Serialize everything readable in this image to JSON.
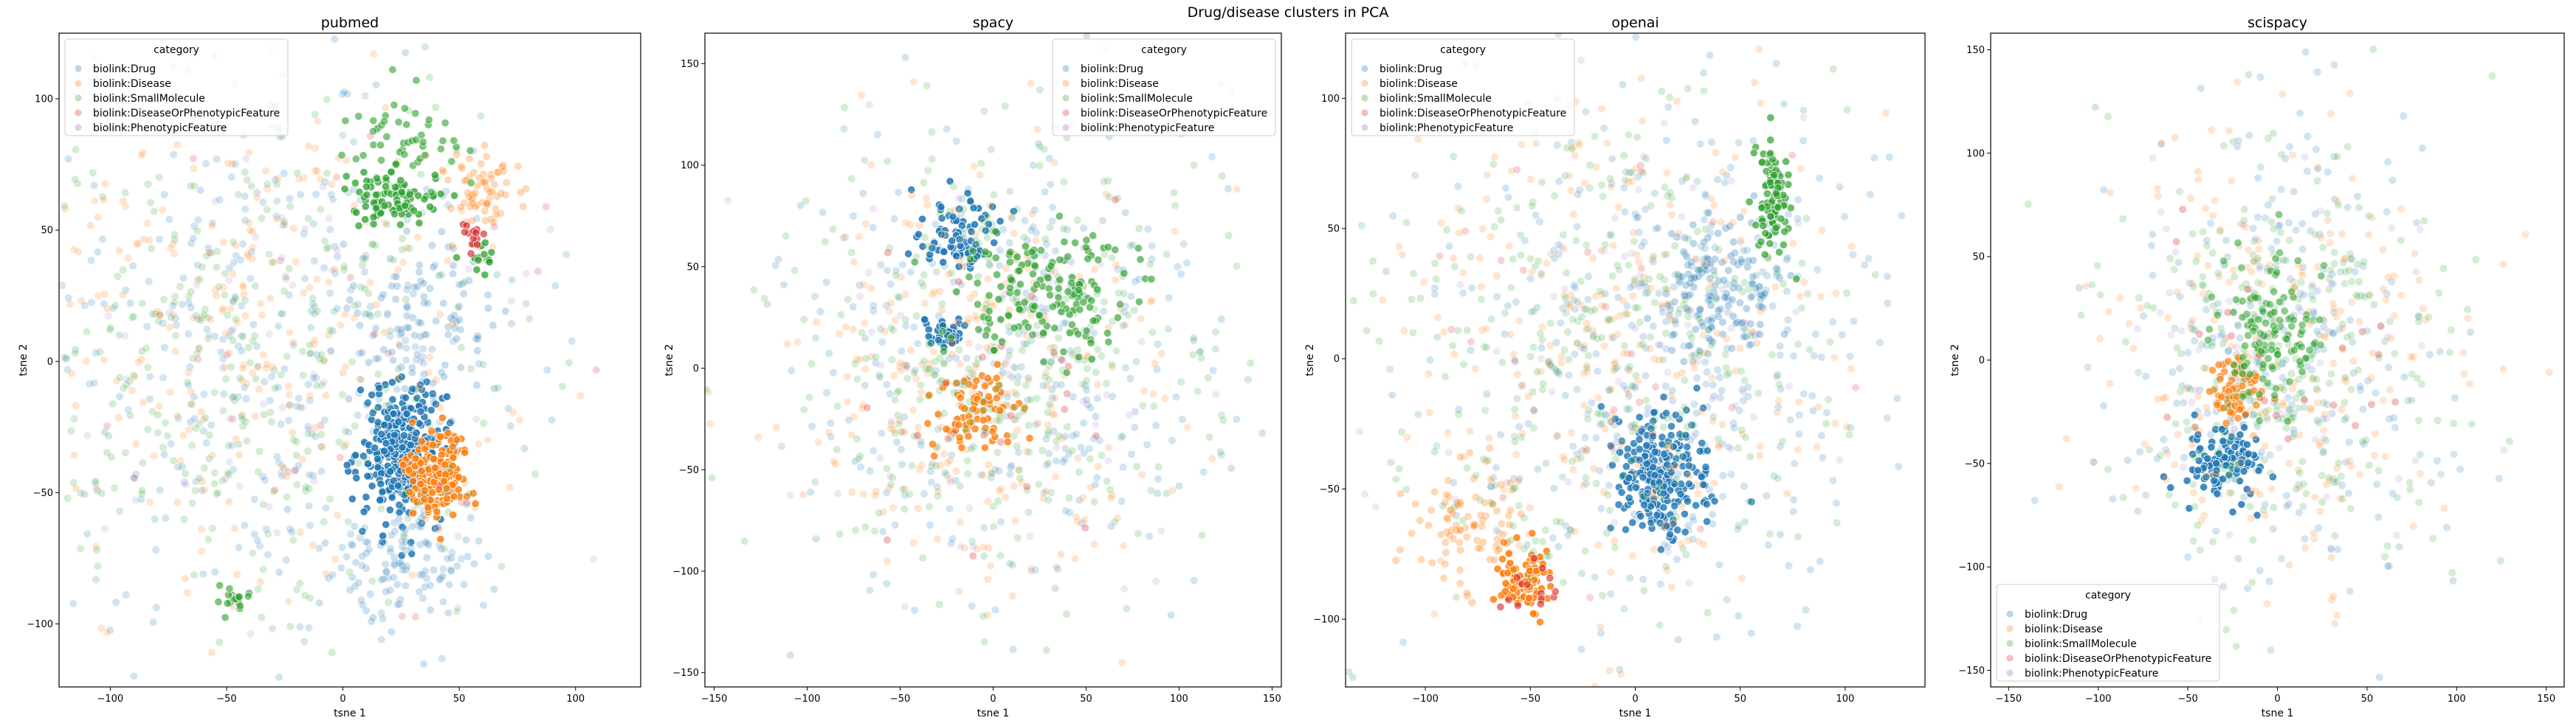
{
  "figure": {
    "suptitle": "Drug/disease clusters in PCA"
  },
  "colors": {
    "biolink:Drug": "#1f77b4",
    "biolink:Disease": "#ff7f0e",
    "biolink:SmallMolecule": "#2ca02c",
    "biolink:DiseaseOrPhenotypicFeature": "#d62728",
    "biolink:PhenotypicFeature": "#9467bd"
  },
  "chart_data": [
    {
      "type": "scatter",
      "title": "pubmed",
      "xlabel": "tsne 1",
      "ylabel": "tsne 2",
      "xlim": [
        -122,
        128
      ],
      "ylim": [
        -124,
        125
      ],
      "xticks": [
        -100,
        -50,
        0,
        50,
        100
      ],
      "yticks": [
        -100,
        -50,
        0,
        50,
        100
      ],
      "legend": {
        "title": "category",
        "location": "upper left",
        "entries": [
          "biolink:Drug",
          "biolink:Disease",
          "biolink:SmallMolecule",
          "biolink:DiseaseOrPhenotypicFeature",
          "biolink:PhenotypicFeature"
        ]
      },
      "series": [
        {
          "name": "biolink:Drug",
          "clusters": [
            {
              "cx": -30,
              "cy": 0,
              "sx": 55,
              "sy": 50,
              "n": 330,
              "alpha": 0.2
            },
            {
              "cx": 25,
              "cy": -35,
              "sx": 9,
              "sy": 13,
              "n": 330,
              "alpha": 0.85
            },
            {
              "cx": 30,
              "cy": -75,
              "sx": 18,
              "sy": 12,
              "n": 120,
              "alpha": 0.22
            },
            {
              "cx": 35,
              "cy": 15,
              "sx": 14,
              "sy": 18,
              "n": 110,
              "alpha": 0.25
            }
          ]
        },
        {
          "name": "biolink:Disease",
          "clusters": [
            {
              "cx": -40,
              "cy": 10,
              "sx": 55,
              "sy": 50,
              "n": 260,
              "alpha": 0.2
            },
            {
              "cx": 40,
              "cy": -42,
              "sx": 7,
              "sy": 8,
              "n": 190,
              "alpha": 0.85
            },
            {
              "cx": 60,
              "cy": 65,
              "sx": 9,
              "sy": 8,
              "n": 70,
              "alpha": 0.3
            }
          ]
        },
        {
          "name": "biolink:SmallMolecule",
          "clusters": [
            {
              "cx": -40,
              "cy": 0,
              "sx": 55,
              "sy": 50,
              "n": 340,
              "alpha": 0.2
            },
            {
              "cx": 20,
              "cy": 62,
              "sx": 10,
              "sy": 5,
              "n": 90,
              "alpha": 0.75
            },
            {
              "cx": 25,
              "cy": 85,
              "sx": 12,
              "sy": 8,
              "n": 50,
              "alpha": 0.6
            },
            {
              "cx": 60,
              "cy": 38,
              "sx": 3,
              "sy": 3,
              "n": 14,
              "alpha": 0.75
            },
            {
              "cx": -45,
              "cy": -90,
              "sx": 5,
              "sy": 3,
              "n": 20,
              "alpha": 0.6
            }
          ]
        },
        {
          "name": "biolink:DiseaseOrPhenotypicFeature",
          "clusters": [
            {
              "cx": 55,
              "cy": 47,
              "sx": 2,
              "sy": 4,
              "n": 14,
              "alpha": 0.65
            },
            {
              "cx": 0,
              "cy": 0,
              "sx": 60,
              "sy": 55,
              "n": 30,
              "alpha": 0.2
            }
          ]
        },
        {
          "name": "biolink:PhenotypicFeature",
          "clusters": [
            {
              "cx": -20,
              "cy": 0,
              "sx": 55,
              "sy": 50,
              "n": 60,
              "alpha": 0.15
            }
          ]
        }
      ]
    },
    {
      "type": "scatter",
      "title": "spacy",
      "xlabel": "tsne 1",
      "ylabel": "tsne 2",
      "xlim": [
        -155,
        155
      ],
      "ylim": [
        -157,
        165
      ],
      "xticks": [
        -150,
        -100,
        -50,
        0,
        50,
        100,
        150
      ],
      "yticks": [
        -150,
        -100,
        -50,
        0,
        50,
        100,
        150
      ],
      "legend": {
        "title": "category",
        "location": "upper right",
        "entries": [
          "biolink:Drug",
          "biolink:Disease",
          "biolink:SmallMolecule",
          "biolink:DiseaseOrPhenotypicFeature",
          "biolink:PhenotypicFeature"
        ]
      },
      "series": [
        {
          "name": "biolink:Drug",
          "clusters": [
            {
              "cx": 10,
              "cy": 0,
              "sx": 55,
              "sy": 55,
              "n": 320,
              "alpha": 0.2
            },
            {
              "cx": -20,
              "cy": 65,
              "sx": 12,
              "sy": 12,
              "n": 80,
              "alpha": 0.85
            },
            {
              "cx": -25,
              "cy": 18,
              "sx": 6,
              "sy": 4,
              "n": 35,
              "alpha": 0.85
            }
          ]
        },
        {
          "name": "biolink:Disease",
          "clusters": [
            {
              "cx": 0,
              "cy": 0,
              "sx": 55,
              "sy": 55,
              "n": 260,
              "alpha": 0.2
            },
            {
              "cx": -10,
              "cy": -20,
              "sx": 10,
              "sy": 10,
              "n": 80,
              "alpha": 0.8
            }
          ]
        },
        {
          "name": "biolink:SmallMolecule",
          "clusters": [
            {
              "cx": 10,
              "cy": 5,
              "sx": 60,
              "sy": 55,
              "n": 340,
              "alpha": 0.2
            },
            {
              "cx": 30,
              "cy": 35,
              "sx": 22,
              "sy": 16,
              "n": 160,
              "alpha": 0.65
            }
          ]
        },
        {
          "name": "biolink:DiseaseOrPhenotypicFeature",
          "clusters": [
            {
              "cx": 0,
              "cy": -10,
              "sx": 40,
              "sy": 40,
              "n": 25,
              "alpha": 0.3
            }
          ]
        },
        {
          "name": "biolink:PhenotypicFeature",
          "clusters": [
            {
              "cx": 0,
              "cy": 0,
              "sx": 55,
              "sy": 55,
              "n": 50,
              "alpha": 0.15
            }
          ]
        }
      ]
    },
    {
      "type": "scatter",
      "title": "openai",
      "xlabel": "tsne 1",
      "ylabel": "tsne 2",
      "xlim": [
        -138,
        138
      ],
      "ylim": [
        -126,
        125
      ],
      "xticks": [
        -100,
        -50,
        0,
        50,
        100
      ],
      "yticks": [
        -100,
        -50,
        0,
        50,
        100
      ],
      "legend": {
        "title": "category",
        "location": "upper left",
        "entries": [
          "biolink:Drug",
          "biolink:Disease",
          "biolink:SmallMolecule",
          "biolink:DiseaseOrPhenotypicFeature",
          "biolink:PhenotypicFeature"
        ]
      },
      "series": [
        {
          "name": "biolink:Drug",
          "clusters": [
            {
              "cx": 10,
              "cy": 0,
              "sx": 55,
              "sy": 50,
              "n": 380,
              "alpha": 0.2
            },
            {
              "cx": 12,
              "cy": -45,
              "sx": 11,
              "sy": 11,
              "n": 260,
              "alpha": 0.8
            },
            {
              "cx": 40,
              "cy": 25,
              "sx": 15,
              "sy": 13,
              "n": 140,
              "alpha": 0.3
            }
          ]
        },
        {
          "name": "biolink:Disease",
          "clusters": [
            {
              "cx": -10,
              "cy": 0,
              "sx": 55,
              "sy": 50,
              "n": 260,
              "alpha": 0.2
            },
            {
              "cx": -52,
              "cy": -85,
              "sx": 7,
              "sy": 6,
              "n": 100,
              "alpha": 0.85
            },
            {
              "cx": -80,
              "cy": -65,
              "sx": 14,
              "sy": 12,
              "n": 90,
              "alpha": 0.3
            }
          ]
        },
        {
          "name": "biolink:SmallMolecule",
          "clusters": [
            {
              "cx": -10,
              "cy": 0,
              "sx": 55,
              "sy": 50,
              "n": 340,
              "alpha": 0.2
            },
            {
              "cx": 65,
              "cy": 62,
              "sx": 4,
              "sy": 10,
              "n": 100,
              "alpha": 0.7
            }
          ]
        },
        {
          "name": "biolink:DiseaseOrPhenotypicFeature",
          "clusters": [
            {
              "cx": -50,
              "cy": -90,
              "sx": 6,
              "sy": 5,
              "n": 14,
              "alpha": 0.6
            },
            {
              "cx": 0,
              "cy": 0,
              "sx": 55,
              "sy": 50,
              "n": 30,
              "alpha": 0.2
            }
          ]
        },
        {
          "name": "biolink:PhenotypicFeature",
          "clusters": [
            {
              "cx": 0,
              "cy": 0,
              "sx": 55,
              "sy": 50,
              "n": 60,
              "alpha": 0.15
            }
          ]
        }
      ]
    },
    {
      "type": "scatter",
      "title": "scispacy",
      "xlabel": "tsne 1",
      "ylabel": "tsne 2",
      "xlim": [
        -160,
        160
      ],
      "ylim": [
        -158,
        158
      ],
      "xticks": [
        -150,
        -100,
        -50,
        0,
        50,
        100,
        150
      ],
      "yticks": [
        -150,
        -100,
        -50,
        0,
        50,
        100,
        150
      ],
      "legend": {
        "title": "category",
        "location": "lower left",
        "entries": [
          "biolink:Drug",
          "biolink:Disease",
          "biolink:SmallMolecule",
          "biolink:DiseaseOrPhenotypicFeature",
          "biolink:PhenotypicFeature"
        ]
      },
      "series": [
        {
          "name": "biolink:Drug",
          "clusters": [
            {
              "cx": 5,
              "cy": 0,
              "sx": 45,
              "sy": 55,
              "n": 260,
              "alpha": 0.2
            },
            {
              "cx": -30,
              "cy": -50,
              "sx": 11,
              "sy": 8,
              "n": 120,
              "alpha": 0.85
            }
          ]
        },
        {
          "name": "biolink:Disease",
          "clusters": [
            {
              "cx": 0,
              "cy": 0,
              "sx": 50,
              "sy": 55,
              "n": 220,
              "alpha": 0.2
            },
            {
              "cx": -25,
              "cy": -15,
              "sx": 8,
              "sy": 8,
              "n": 70,
              "alpha": 0.7
            }
          ]
        },
        {
          "name": "biolink:SmallMolecule",
          "clusters": [
            {
              "cx": 5,
              "cy": 0,
              "sx": 50,
              "sy": 55,
              "n": 300,
              "alpha": 0.2
            },
            {
              "cx": -5,
              "cy": 15,
              "sx": 14,
              "sy": 18,
              "n": 120,
              "alpha": 0.55
            }
          ]
        },
        {
          "name": "biolink:DiseaseOrPhenotypicFeature",
          "clusters": [
            {
              "cx": 0,
              "cy": -10,
              "sx": 40,
              "sy": 45,
              "n": 20,
              "alpha": 0.3
            }
          ]
        },
        {
          "name": "biolink:PhenotypicFeature",
          "clusters": [
            {
              "cx": 0,
              "cy": 0,
              "sx": 50,
              "sy": 55,
              "n": 50,
              "alpha": 0.15
            }
          ]
        }
      ]
    }
  ]
}
